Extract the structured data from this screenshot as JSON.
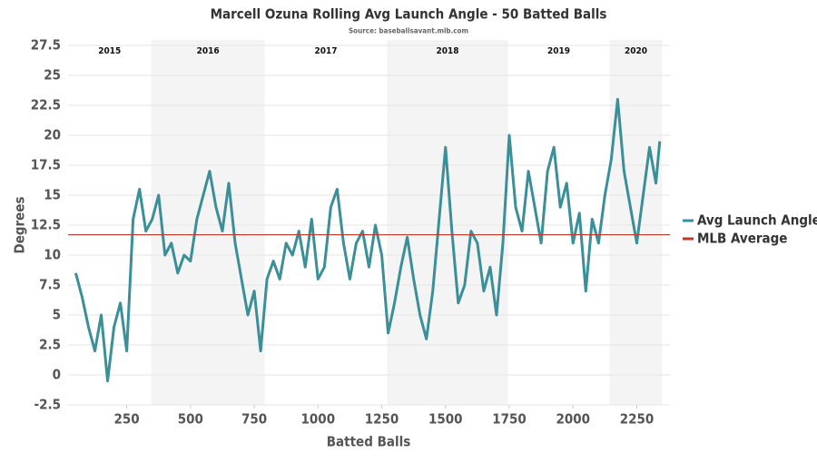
{
  "chart_data": {
    "type": "line",
    "title": "Marcell Ozuna Rolling Avg Launch Angle - 50 Batted Balls",
    "subtitle": "Source: baseballsavant.mlb.com",
    "x_label": "Batted Balls",
    "y_label": "Degrees",
    "xlim": [
      20,
      2380
    ],
    "ylim": [
      -2.5,
      27.5
    ],
    "xticks": [
      250,
      500,
      750,
      1000,
      1250,
      1500,
      1750,
      2000,
      2250
    ],
    "yticks": [
      -2.5,
      0,
      2.5,
      5,
      7.5,
      10,
      12.5,
      15,
      17.5,
      20,
      22.5,
      25,
      27.5
    ],
    "grid": true,
    "legend": "right",
    "seasons": [
      {
        "label": "2015",
        "start": 20,
        "end": 346,
        "shaded": false
      },
      {
        "label": "2016",
        "start": 346,
        "end": 791,
        "shaded": true
      },
      {
        "label": "2017",
        "start": 791,
        "end": 1271,
        "shaded": false
      },
      {
        "label": "2018",
        "start": 1271,
        "end": 1745,
        "shaded": true
      },
      {
        "label": "2019",
        "start": 1745,
        "end": 2143,
        "shaded": false
      },
      {
        "label": "2020",
        "start": 2143,
        "end": 2350,
        "shaded": true
      }
    ],
    "x": [
      50,
      75,
      100,
      125,
      150,
      175,
      200,
      225,
      250,
      275,
      300,
      325,
      350,
      375,
      400,
      425,
      450,
      475,
      500,
      525,
      550,
      575,
      600,
      625,
      650,
      675,
      700,
      725,
      750,
      775,
      800,
      825,
      850,
      875,
      900,
      925,
      950,
      975,
      1000,
      1025,
      1050,
      1075,
      1100,
      1125,
      1150,
      1175,
      1200,
      1225,
      1250,
      1275,
      1300,
      1325,
      1350,
      1375,
      1400,
      1425,
      1450,
      1475,
      1500,
      1525,
      1550,
      1575,
      1600,
      1625,
      1650,
      1675,
      1700,
      1725,
      1750,
      1775,
      1800,
      1825,
      1850,
      1875,
      1900,
      1925,
      1950,
      1975,
      2000,
      2025,
      2050,
      2075,
      2100,
      2125,
      2150,
      2175,
      2200,
      2225,
      2250,
      2275,
      2300,
      2325,
      2340
    ],
    "series": [
      {
        "name": "Avg Launch Angle",
        "color": "#3a8f98",
        "values": [
          8.5,
          6.5,
          4,
          2,
          5,
          -0.5,
          4,
          6,
          2,
          13,
          15.5,
          12,
          13,
          15,
          10,
          11,
          8.5,
          10,
          9.5,
          13,
          15,
          17,
          14,
          12,
          16,
          11,
          8,
          5,
          7,
          2,
          8,
          9.5,
          8,
          11,
          10,
          12,
          9,
          13,
          8,
          9,
          14,
          15.5,
          11,
          8,
          11,
          12,
          9,
          12.5,
          10,
          3.5,
          6,
          9,
          11.5,
          8,
          5,
          3,
          7,
          13,
          19,
          12,
          6,
          7.5,
          12,
          11,
          7,
          9,
          5,
          11,
          20,
          14,
          12,
          17,
          14,
          11,
          17,
          19,
          14,
          16,
          11,
          13.5,
          7,
          13,
          11,
          15,
          18,
          23,
          17,
          14,
          11,
          15,
          19,
          16,
          19.5
        ]
      },
      {
        "name": "MLB Average",
        "color": "#c0392b",
        "constant": 11.7
      }
    ]
  }
}
